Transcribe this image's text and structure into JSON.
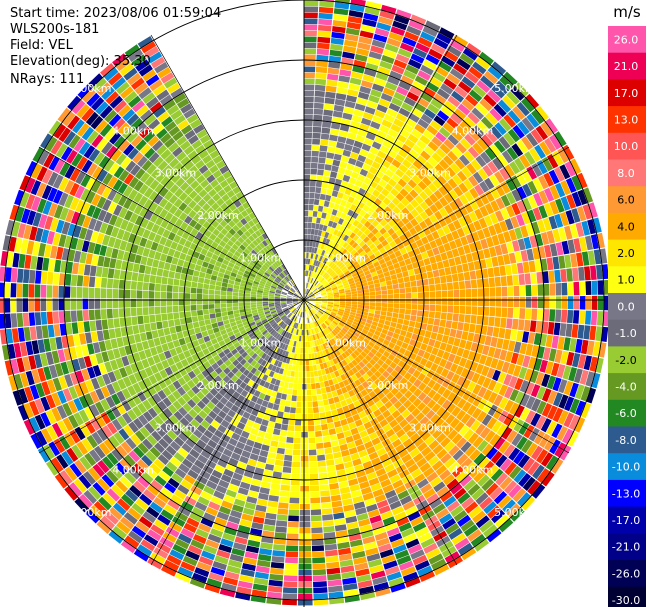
{
  "info": {
    "start_time": "Start time: 2023/08/06 01:59:04",
    "instrument": "WLS200s-181",
    "field": "Field: VEL",
    "elevation": "Elevation(deg): 35.30",
    "nrays": "NRays: 111"
  },
  "chart_data": {
    "type": "heatmap",
    "projection": "polar (PPI scan)",
    "field": "VEL",
    "units": "m/s",
    "elevation_deg": 35.3,
    "n_rays": 111,
    "range_rings_km": [
      1,
      2,
      3,
      4,
      5
    ],
    "range_ring_labels": [
      "1.00km",
      "2.00km",
      "3.00km",
      "4.00km",
      "5.00km"
    ],
    "max_range_km": 5.1,
    "gap_sector_deg": [
      330,
      360
    ],
    "grid": true,
    "colorbar": {
      "title": "m/s",
      "tick_labels": [
        "26.0",
        "21.0",
        "17.0",
        "13.0",
        "10.0",
        "8.0",
        "6.0",
        "4.0",
        "2.0",
        "1.0",
        "0.0",
        "-1.0",
        "-2.0",
        "-4.0",
        "-6.0",
        "-8.0",
        "-10.0",
        "-13.0",
        "-17.0",
        "-21.0",
        "-26.0",
        "-30.0"
      ],
      "colors": [
        "#ff55aa",
        "#ee0055",
        "#dd0000",
        "#ff3300",
        "#ff5555",
        "#ff7777",
        "#ff9933",
        "#ffaa00",
        "#ffe600",
        "#ffff11",
        "#777788",
        "#6b6b7a",
        "#99cc33",
        "#669922",
        "#228822",
        "#2d5a8f",
        "#0a8cdc",
        "#0000ff",
        "#0000aa",
        "#000088",
        "#000055",
        "#000033"
      ],
      "range": [
        -30,
        30
      ]
    },
    "pattern": {
      "approaching_sector_center_deg": 285,
      "receding_sector_center_deg": 105,
      "mid_wind_speed_ms": 3.5,
      "near_zero_near_center": true
    }
  }
}
